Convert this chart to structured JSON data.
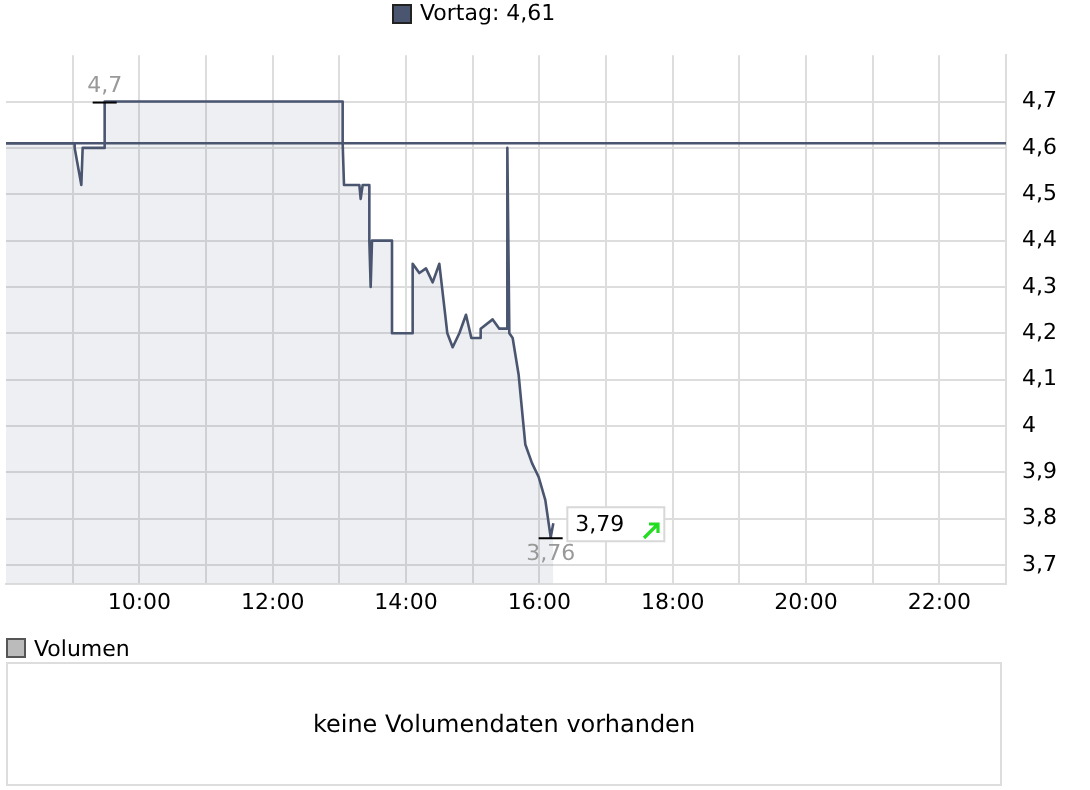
{
  "chart_data": [
    {
      "type": "area",
      "xlim": [
        8,
        23
      ],
      "ylim": [
        3.66,
        4.8
      ],
      "xticks": [
        {
          "value": 9,
          "label": null
        },
        {
          "value": 10,
          "label": "10:00"
        },
        {
          "value": 11,
          "label": null
        },
        {
          "value": 12,
          "label": "12:00"
        },
        {
          "value": 13,
          "label": null
        },
        {
          "value": 14,
          "label": "14:00"
        },
        {
          "value": 15,
          "label": null
        },
        {
          "value": 16,
          "label": "16:00"
        },
        {
          "value": 17,
          "label": null
        },
        {
          "value": 18,
          "label": "18:00"
        },
        {
          "value": 19,
          "label": null
        },
        {
          "value": 20,
          "label": "20:00"
        },
        {
          "value": 21,
          "label": null
        },
        {
          "value": 22,
          "label": "22:00"
        }
      ],
      "yticks": [
        {
          "value": 3.7,
          "label": "3,7"
        },
        {
          "value": 3.8,
          "label": "3,8"
        },
        {
          "value": 3.9,
          "label": "3,9"
        },
        {
          "value": 4,
          "label": "4"
        },
        {
          "value": 4.1,
          "label": "4,1"
        },
        {
          "value": 4.2,
          "label": "4,2"
        },
        {
          "value": 4.3,
          "label": "4,3"
        },
        {
          "value": 4.4,
          "label": "4,4"
        },
        {
          "value": 4.5,
          "label": "4,5"
        },
        {
          "value": 4.6,
          "label": "4,6"
        },
        {
          "value": 4.7,
          "label": "4,7"
        }
      ],
      "grid": true,
      "legend": "top left",
      "series": [
        {
          "color": "#4a5570",
          "x": [
            8,
            9.03,
            9.03,
            9.13,
            9.15,
            9.48,
            9.48,
            13.05,
            13.05,
            13.07,
            13.3,
            13.32,
            13.35,
            13.45,
            13.45,
            13.47,
            13.49,
            13.79,
            13.79,
            14.1,
            14.1,
            14.2,
            14.3,
            14.4,
            14.5,
            14.58,
            14.62,
            14.7,
            14.8,
            14.9,
            14.98,
            15.12,
            15.12,
            15.3,
            15.4,
            15.5,
            15.52,
            15.55,
            15.6,
            15.69,
            15.79,
            15.89,
            15.99,
            16.09,
            16.17,
            16.21
          ],
          "values": [
            4.61,
            4.61,
            4.6,
            4.52,
            4.6,
            4.6,
            4.7,
            4.7,
            4.61,
            4.52,
            4.52,
            4.49,
            4.52,
            4.52,
            4.4,
            4.3,
            4.4,
            4.4,
            4.2,
            4.2,
            4.35,
            4.33,
            4.34,
            4.31,
            4.35,
            4.25,
            4.2,
            4.17,
            4.2,
            4.24,
            4.19,
            4.19,
            4.21,
            4.23,
            4.21,
            4.21,
            4.6,
            4.2,
            4.19,
            4.11,
            3.96,
            3.92,
            3.89,
            3.84,
            3.76,
            3.79
          ]
        }
      ],
      "ref_lines": [
        {
          "axis": "y",
          "value": 4.61,
          "label": "Vortag: 4,61",
          "color": "#4a5570"
        }
      ],
      "annotations": [
        {
          "text": "4,7",
          "x": 9.48,
          "y": 4.7
        },
        {
          "text": "3,76",
          "x": 16.17,
          "y": 3.76
        },
        {
          "text": "3,79",
          "x": 16.21,
          "y": 3.79
        }
      ]
    },
    {
      "type": "other",
      "title": "Volumen",
      "annotations": [
        "keine Volumendaten vorhanden"
      ]
    }
  ]
}
